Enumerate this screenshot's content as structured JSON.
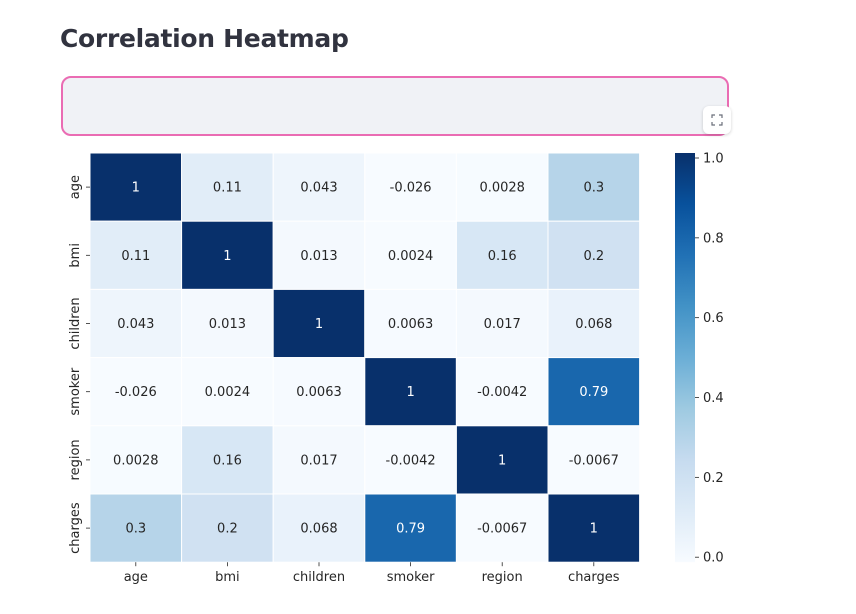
{
  "page": {
    "title": "Correlation Heatmap"
  },
  "icons": {
    "fullscreen": "expand-icon"
  },
  "chart_data": {
    "type": "heatmap",
    "title": "",
    "xlabel": "",
    "ylabel": "",
    "colormap": "Blues",
    "vmin": 0.0,
    "vmax": 1.0,
    "x_categories": [
      "age",
      "bmi",
      "children",
      "smoker",
      "region",
      "charges"
    ],
    "y_categories": [
      "age",
      "bmi",
      "children",
      "smoker",
      "region",
      "charges"
    ],
    "values": [
      [
        1,
        0.11,
        0.043,
        -0.026,
        0.0028,
        0.3
      ],
      [
        0.11,
        1,
        0.013,
        0.0024,
        0.16,
        0.2
      ],
      [
        0.043,
        0.013,
        1,
        0.0063,
        0.017,
        0.068
      ],
      [
        -0.026,
        0.0024,
        0.0063,
        1,
        -0.0042,
        0.79
      ],
      [
        0.0028,
        0.16,
        0.017,
        -0.0042,
        1,
        -0.0067
      ],
      [
        0.3,
        0.2,
        0.068,
        0.79,
        -0.0067,
        1
      ]
    ],
    "labels": [
      [
        "1",
        "0.11",
        "0.043",
        "-0.026",
        "0.0028",
        "0.3"
      ],
      [
        "0.11",
        "1",
        "0.013",
        "0.0024",
        "0.16",
        "0.2"
      ],
      [
        "0.043",
        "0.013",
        "1",
        "0.0063",
        "0.017",
        "0.068"
      ],
      [
        "-0.026",
        "0.0024",
        "0.0063",
        "1",
        "-0.0042",
        "0.79"
      ],
      [
        "0.0028",
        "0.16",
        "0.017",
        "-0.0042",
        "1",
        "-0.0067"
      ],
      [
        "0.3",
        "0.2",
        "0.068",
        "0.79",
        "-0.0067",
        "1"
      ]
    ],
    "colorbar_ticks": [
      "0.0",
      "0.2",
      "0.4",
      "0.6",
      "0.8",
      "1.0"
    ],
    "colorbar_tick_values": [
      0.0,
      0.2,
      0.4,
      0.6,
      0.8,
      1.0
    ]
  }
}
